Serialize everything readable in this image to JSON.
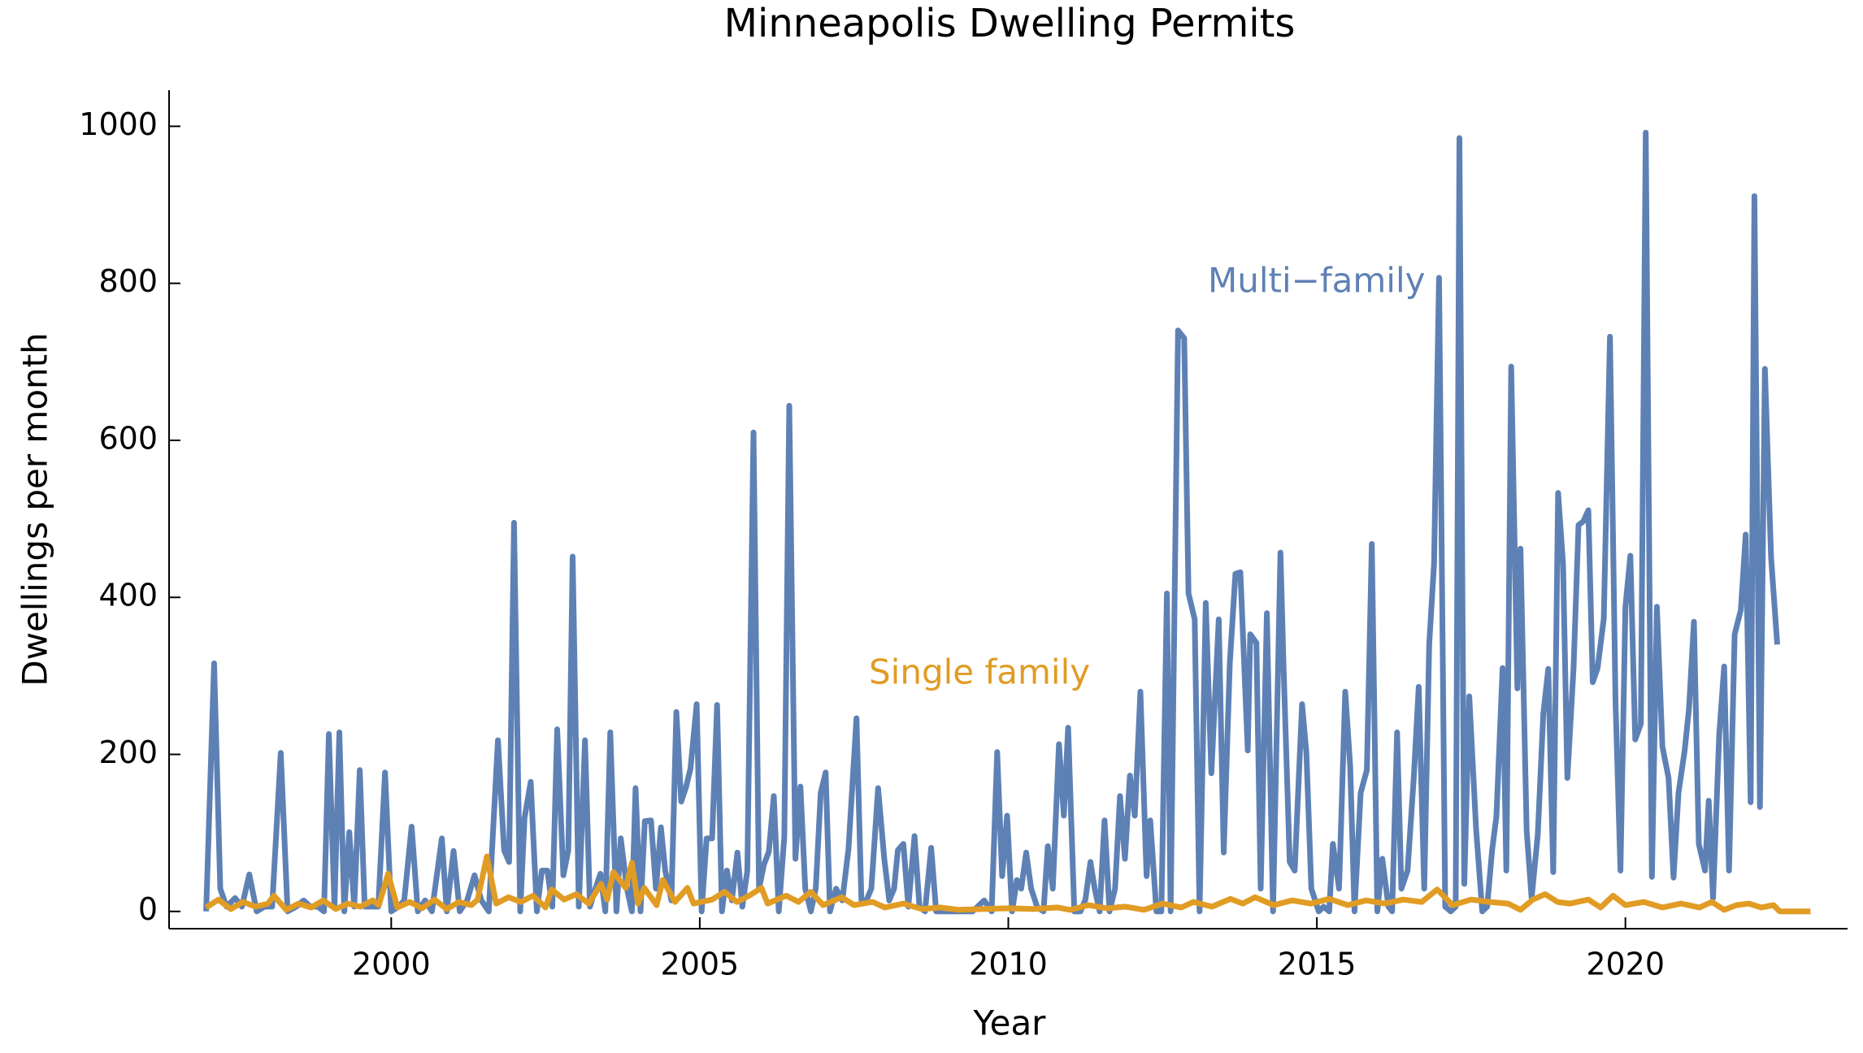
{
  "chart_data": {
    "type": "line",
    "title": "Minneapolis Dwelling Permits",
    "x_label": "Year",
    "y_label": "Dwellings per month",
    "xlim": [
      1996.4,
      2023.6
    ],
    "ylim": [
      -22,
      1046
    ],
    "xticks": [
      2000,
      2005,
      2010,
      2015,
      2020
    ],
    "yticks": [
      0,
      200,
      400,
      600,
      800,
      1000
    ],
    "grid": false,
    "series": [
      {
        "name": "Multi−family",
        "color": "#5e81b5",
        "x": [
          1997.0,
          1997.13,
          1997.23,
          1997.33,
          1997.47,
          1997.58,
          1997.7,
          1997.82,
          1997.95,
          1998.07,
          1998.21,
          1998.32,
          1998.46,
          1998.58,
          1998.69,
          1998.81,
          1998.91,
          1998.99,
          1999.08,
          1999.16,
          1999.24,
          1999.32,
          1999.4,
          1999.49,
          1999.57,
          1999.67,
          1999.79,
          1999.9,
          2000.0,
          2000.12,
          2000.21,
          2000.33,
          2000.43,
          2000.55,
          2000.66,
          2000.82,
          2000.9,
          2001.01,
          2001.11,
          2001.23,
          2001.35,
          2001.46,
          2001.58,
          2001.73,
          2001.83,
          2001.91,
          2001.99,
          2002.09,
          2002.16,
          2002.26,
          2002.36,
          2002.44,
          2002.53,
          2002.61,
          2002.69,
          2002.79,
          2002.87,
          2002.94,
          2003.04,
          2003.14,
          2003.22,
          2003.31,
          2003.39,
          2003.47,
          2003.55,
          2003.65,
          2003.72,
          2003.82,
          2003.9,
          2003.96,
          2004.04,
          2004.11,
          2004.21,
          2004.29,
          2004.37,
          2004.44,
          2004.54,
          2004.62,
          2004.7,
          2004.78,
          2004.85,
          2004.95,
          2005.03,
          2005.11,
          2005.2,
          2005.28,
          2005.36,
          2005.44,
          2005.52,
          2005.61,
          2005.69,
          2005.77,
          2005.87,
          2005.96,
          2006.04,
          2006.12,
          2006.2,
          2006.28,
          2006.37,
          2006.45,
          2006.55,
          2006.63,
          2006.71,
          2006.8,
          2006.88,
          2006.96,
          2007.04,
          2007.11,
          2007.21,
          2007.31,
          2007.41,
          2007.54,
          2007.62,
          2007.7,
          2007.78,
          2007.89,
          2007.99,
          2008.07,
          2008.15,
          2008.21,
          2008.3,
          2008.38,
          2008.48,
          2008.56,
          2008.65,
          2008.75,
          2008.83,
          2009.03,
          2009.22,
          2009.42,
          2009.61,
          2009.73,
          2009.82,
          2009.9,
          2009.98,
          2010.06,
          2010.14,
          2010.21,
          2010.29,
          2010.37,
          2010.47,
          2010.57,
          2010.64,
          2010.72,
          2010.82,
          2010.9,
          2010.97,
          2011.07,
          2011.17,
          2011.25,
          2011.33,
          2011.4,
          2011.48,
          2011.56,
          2011.64,
          2011.73,
          2011.81,
          2011.89,
          2011.97,
          2012.05,
          2012.14,
          2012.24,
          2012.3,
          2012.4,
          2012.48,
          2012.57,
          2012.63,
          2012.75,
          2012.85,
          2012.92,
          2013.02,
          2013.1,
          2013.2,
          2013.29,
          2013.41,
          2013.49,
          2013.59,
          2013.68,
          2013.76,
          2013.88,
          2013.92,
          2014.02,
          2014.09,
          2014.19,
          2014.29,
          2014.41,
          2014.46,
          2014.56,
          2014.64,
          2014.76,
          2014.83,
          2014.91,
          2015.03,
          2015.11,
          2015.2,
          2015.26,
          2015.36,
          2015.46,
          2015.54,
          2015.61,
          2015.71,
          2015.81,
          2015.89,
          2015.98,
          2016.06,
          2016.16,
          2016.22,
          2016.3,
          2016.37,
          2016.47,
          2016.57,
          2016.65,
          2016.74,
          2016.82,
          2016.9,
          2016.98,
          2017.08,
          2017.17,
          2017.25,
          2017.31,
          2017.39,
          2017.47,
          2017.58,
          2017.68,
          2017.76,
          2017.84,
          2017.91,
          2018.01,
          2018.07,
          2018.15,
          2018.25,
          2018.3,
          2018.4,
          2018.48,
          2018.58,
          2018.67,
          2018.75,
          2018.83,
          2018.91,
          2018.99,
          2019.06,
          2019.16,
          2019.24,
          2019.32,
          2019.4,
          2019.47,
          2019.55,
          2019.65,
          2019.75,
          2019.84,
          2019.92,
          2020.0,
          2020.08,
          2020.16,
          2020.25,
          2020.33,
          2020.43,
          2020.51,
          2020.6,
          2020.7,
          2020.78,
          2020.86,
          2020.96,
          2021.03,
          2021.11,
          2021.19,
          2021.29,
          2021.35,
          2021.42,
          2021.52,
          2021.6,
          2021.68,
          2021.77,
          2021.87,
          2021.95,
          2022.03,
          2022.09,
          2022.18,
          2022.26,
          2022.36,
          2022.46
        ],
        "values": [
          0,
          316,
          29,
          6,
          17,
          6,
          47,
          0,
          6,
          6,
          202,
          0,
          6,
          14,
          6,
          6,
          0,
          226,
          6,
          228,
          0,
          101,
          6,
          180,
          6,
          6,
          6,
          177,
          0,
          6,
          14,
          108,
          0,
          14,
          0,
          93,
          0,
          77,
          0,
          14,
          46,
          14,
          0,
          218,
          78,
          63,
          495,
          0,
          119,
          165,
          0,
          52,
          52,
          6,
          232,
          46,
          78,
          452,
          6,
          218,
          6,
          29,
          48,
          0,
          228,
          0,
          93,
          29,
          0,
          157,
          0,
          115,
          116,
          29,
          107,
          52,
          14,
          254,
          140,
          159,
          182,
          264,
          0,
          93,
          93,
          263,
          0,
          52,
          14,
          75,
          6,
          52,
          610,
          29,
          60,
          76,
          147,
          0,
          95,
          644,
          67,
          159,
          29,
          0,
          29,
          151,
          177,
          0,
          29,
          14,
          80,
          246,
          14,
          14,
          29,
          157,
          67,
          14,
          29,
          78,
          86,
          6,
          96,
          6,
          0,
          81,
          0,
          0,
          0,
          0,
          14,
          0,
          203,
          45,
          122,
          0,
          40,
          29,
          75,
          29,
          5,
          0,
          83,
          29,
          213,
          122,
          234,
          0,
          0,
          15,
          63,
          29,
          0,
          116,
          0,
          29,
          147,
          67,
          173,
          122,
          280,
          45,
          116,
          0,
          0,
          405,
          0,
          740,
          730,
          405,
          372,
          0,
          393,
          176,
          372,
          75,
          316,
          430,
          432,
          205,
          353,
          342,
          29,
          380,
          0,
          457,
          313,
          63,
          52,
          264,
          202,
          29,
          0,
          6,
          0,
          86,
          29,
          280,
          185,
          0,
          151,
          180,
          468,
          0,
          67,
          6,
          0,
          228,
          29,
          52,
          170,
          286,
          29,
          340,
          443,
          807,
          6,
          0,
          6,
          985,
          35,
          274,
          105,
          0,
          6,
          78,
          121,
          310,
          52,
          694,
          284,
          462,
          103,
          17,
          98,
          252,
          309,
          50,
          533,
          442,
          170,
          310,
          492,
          497,
          511,
          292,
          310,
          373,
          732,
          269,
          52,
          388,
          453,
          219,
          239,
          992,
          44,
          388,
          210,
          170,
          43,
          151,
          205,
          258,
          369,
          86,
          52,
          141,
          17,
          225,
          312,
          52,
          353,
          384,
          480,
          139,
          911,
          133,
          691,
          451,
          340
        ]
      },
      {
        "name": "Single family",
        "color": "#e19c24",
        "x": [
          1997.0,
          1997.2,
          1997.4,
          1997.6,
          1997.8,
          1998.0,
          1998.1,
          1998.3,
          1998.5,
          1998.7,
          1998.9,
          1999.1,
          1999.3,
          1999.5,
          1999.7,
          1999.8,
          1999.95,
          2000.1,
          2000.3,
          2000.5,
          2000.7,
          2000.9,
          2001.1,
          2001.3,
          2001.4,
          2001.55,
          2001.7,
          2001.9,
          2002.1,
          2002.3,
          2002.5,
          2002.6,
          2002.8,
          2003.0,
          2003.2,
          2003.4,
          2003.5,
          2003.6,
          2003.8,
          2003.9,
          2004.0,
          2004.1,
          2004.3,
          2004.4,
          2004.6,
          2004.8,
          2004.9,
          2005.2,
          2005.4,
          2005.6,
          2005.8,
          2006.0,
          2006.1,
          2006.4,
          2006.6,
          2006.8,
          2007.0,
          2007.3,
          2007.5,
          2007.8,
          2008.0,
          2008.3,
          2008.6,
          2008.9,
          2009.2,
          2009.6,
          2010.0,
          2010.4,
          2010.8,
          2011.0,
          2011.3,
          2011.6,
          2011.9,
          2012.2,
          2012.5,
          2012.8,
          2013.0,
          2013.3,
          2013.6,
          2013.8,
          2014.0,
          2014.3,
          2014.6,
          2014.9,
          2015.2,
          2015.5,
          2015.8,
          2016.1,
          2016.4,
          2016.7,
          2016.95,
          2017.2,
          2017.5,
          2017.8,
          2018.1,
          2018.3,
          2018.5,
          2018.7,
          2018.9,
          2019.1,
          2019.4,
          2019.6,
          2019.8,
          2020.0,
          2020.3,
          2020.6,
          2020.9,
          2021.2,
          2021.4,
          2021.6,
          2021.8,
          2022.0,
          2022.2,
          2022.4,
          2022.5,
          2023.0
        ],
        "values": [
          5,
          15,
          3,
          12,
          6,
          10,
          20,
          2,
          10,
          5,
          14,
          3,
          10,
          6,
          14,
          8,
          48,
          5,
          12,
          4,
          15,
          3,
          12,
          8,
          15,
          70,
          10,
          18,
          12,
          20,
          5,
          28,
          15,
          22,
          10,
          35,
          15,
          50,
          30,
          62,
          10,
          30,
          8,
          40,
          12,
          30,
          10,
          15,
          25,
          12,
          20,
          30,
          10,
          20,
          12,
          25,
          8,
          18,
          8,
          12,
          5,
          10,
          3,
          5,
          2,
          3,
          4,
          3,
          5,
          2,
          8,
          4,
          6,
          2,
          10,
          5,
          12,
          6,
          16,
          10,
          18,
          8,
          14,
          10,
          16,
          8,
          14,
          10,
          15,
          12,
          28,
          8,
          15,
          12,
          10,
          2,
          15,
          22,
          12,
          10,
          15,
          5,
          20,
          8,
          12,
          5,
          10,
          5,
          12,
          2,
          8,
          10,
          5,
          8,
          0,
          0
        ]
      }
    ]
  }
}
